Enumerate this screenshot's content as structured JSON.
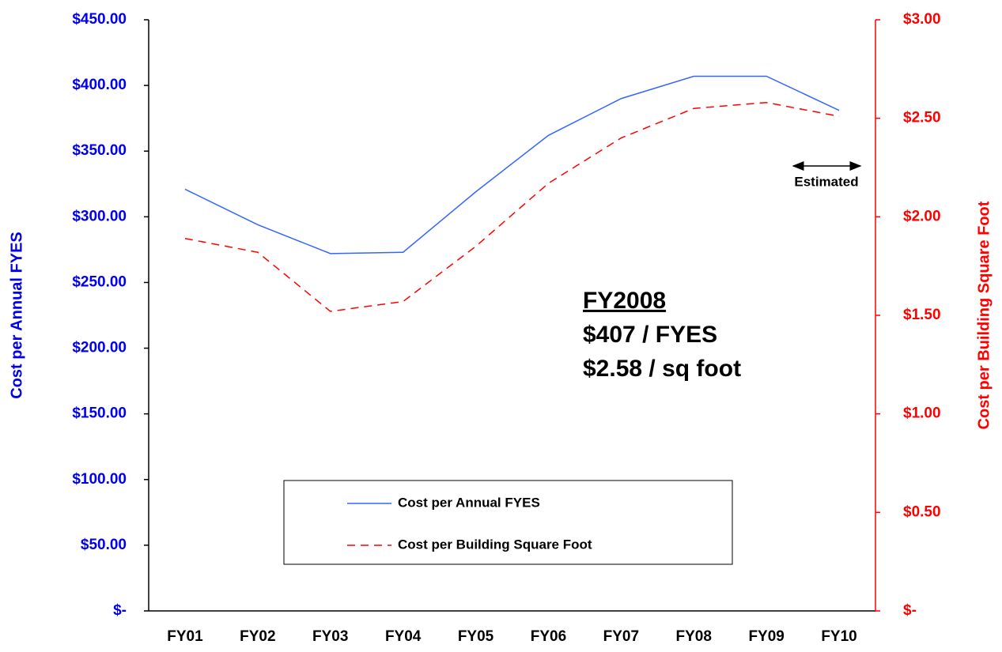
{
  "chart_data": {
    "type": "line",
    "categories": [
      "FY01",
      "FY02",
      "FY03",
      "FY04",
      "FY05",
      "FY06",
      "FY07",
      "FY08",
      "FY09",
      "FY10"
    ],
    "series": [
      {
        "name": "Cost per Annual FYES",
        "color": "#3366ff",
        "axis": "y",
        "values": [
          321,
          294,
          272,
          273,
          319,
          362,
          390,
          407,
          407,
          381
        ]
      },
      {
        "name": "Cost per Building Square Foot",
        "color": "#ff0000",
        "axis": "y2",
        "values": [
          1.89,
          1.82,
          1.52,
          1.57,
          1.85,
          2.17,
          2.4,
          2.55,
          2.58,
          2.51
        ]
      }
    ],
    "y_label": "Cost per Annual FYES",
    "y2_label": "Cost per Building Square Foot",
    "ylim": [
      0,
      450
    ],
    "yticks": [
      {
        "value": 0,
        "label": "$-"
      },
      {
        "value": 50,
        "label": "$50.00"
      },
      {
        "value": 100,
        "label": "$100.00"
      },
      {
        "value": 150,
        "label": "$150.00"
      },
      {
        "value": 200,
        "label": "$200.00"
      },
      {
        "value": 250,
        "label": "$250.00"
      },
      {
        "value": 300,
        "label": "$300.00"
      },
      {
        "value": 350,
        "label": "$350.00"
      },
      {
        "value": 400,
        "label": "$400.00"
      },
      {
        "value": 450,
        "label": "$450.00"
      }
    ],
    "y2lim": [
      0,
      3
    ],
    "y2ticks": [
      {
        "value": 0,
        "label": "$-"
      },
      {
        "value": 0.5,
        "label": "$0.50"
      },
      {
        "value": 1,
        "label": "$1.00"
      },
      {
        "value": 1.5,
        "label": "$1.50"
      },
      {
        "value": 2,
        "label": "$2.00"
      },
      {
        "value": 2.5,
        "label": "$2.50"
      },
      {
        "value": 3,
        "label": "$3.00"
      }
    ],
    "annotations": [
      "FY2008",
      "$407 / FYES",
      "$2.58 / sq foot",
      "Estimated"
    ],
    "legend": "lower center"
  }
}
